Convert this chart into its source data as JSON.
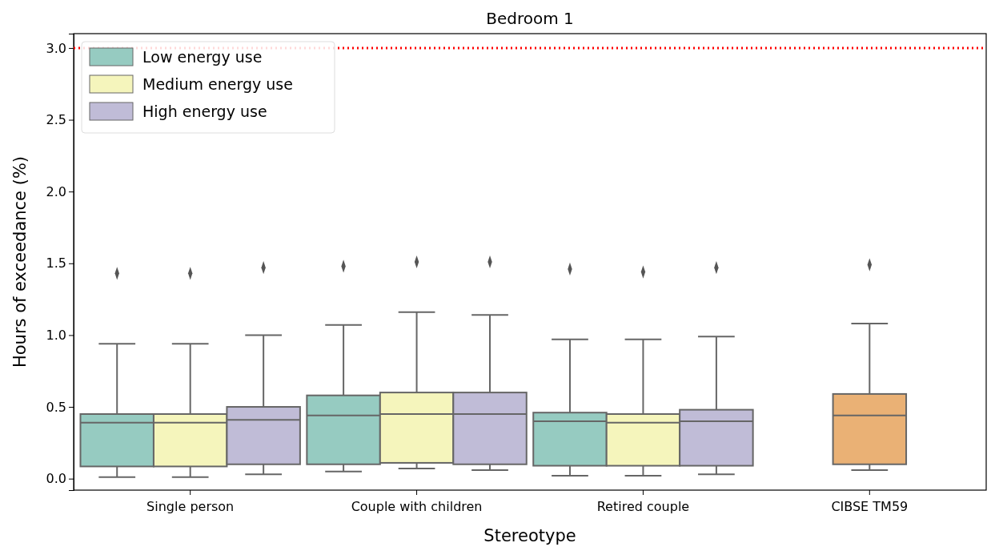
{
  "chart_data": {
    "type": "box",
    "title": "Bedroom 1",
    "xlabel": "Stereotype",
    "ylabel": "Hours of exceedance (%)",
    "categories": [
      "Single person",
      "Couple with children",
      "Retired couple",
      "CIBSE TM59"
    ],
    "ylim": [
      -0.08,
      3.1
    ],
    "yticks": [
      {
        "value": 0,
        "label": "0.0"
      },
      0.5,
      {
        "value": 1,
        "label": "1.0"
      },
      1.5,
      {
        "value": 2,
        "label": "2.0"
      },
      2.5,
      {
        "value": 3,
        "label": "3.0"
      }
    ],
    "grid": false,
    "legend": "top left",
    "marker": "diamond",
    "ref_lines": [
      {
        "axis": "y",
        "value": 3.0,
        "color": "#ff0000",
        "line_style": "dotted"
      }
    ],
    "series": [
      {
        "name": "Low energy use",
        "color": "#96cbc1",
        "boxes": [
          {
            "low": 0.01,
            "q1": 0.085,
            "median": 0.39,
            "q3": 0.45,
            "high": 0.94,
            "outliers": [
              1.43
            ]
          },
          {
            "low": 0.05,
            "q1": 0.1,
            "median": 0.44,
            "q3": 0.58,
            "high": 1.07,
            "outliers": [
              1.48
            ]
          },
          {
            "low": 0.02,
            "q1": 0.09,
            "median": 0.4,
            "q3": 0.46,
            "high": 0.97,
            "outliers": [
              1.46
            ]
          },
          null
        ]
      },
      {
        "name": "Medium energy use",
        "color": "#f5f5bc",
        "boxes": [
          {
            "low": 0.01,
            "q1": 0.085,
            "median": 0.39,
            "q3": 0.45,
            "high": 0.94,
            "outliers": [
              1.43
            ]
          },
          {
            "low": 0.07,
            "q1": 0.11,
            "median": 0.45,
            "q3": 0.6,
            "high": 1.16,
            "outliers": [
              1.51
            ]
          },
          {
            "low": 0.02,
            "q1": 0.09,
            "median": 0.39,
            "q3": 0.45,
            "high": 0.97,
            "outliers": [
              1.44
            ]
          },
          null
        ]
      },
      {
        "name": "High energy use",
        "color": "#c0bcd7",
        "boxes": [
          {
            "low": 0.03,
            "q1": 0.1,
            "median": 0.41,
            "q3": 0.5,
            "high": 1.0,
            "outliers": [
              1.47
            ]
          },
          {
            "low": 0.06,
            "q1": 0.1,
            "median": 0.45,
            "q3": 0.6,
            "high": 1.14,
            "outliers": [
              1.51
            ]
          },
          {
            "low": 0.03,
            "q1": 0.09,
            "median": 0.4,
            "q3": 0.48,
            "high": 0.99,
            "outliers": [
              1.47
            ]
          },
          null
        ]
      },
      {
        "color": "#eab175",
        "boxes": [
          null,
          null,
          null,
          {
            "low": 0.06,
            "q1": 0.1,
            "median": 0.44,
            "q3": 0.59,
            "high": 1.08,
            "outliers": [
              1.49
            ]
          }
        ]
      }
    ]
  }
}
